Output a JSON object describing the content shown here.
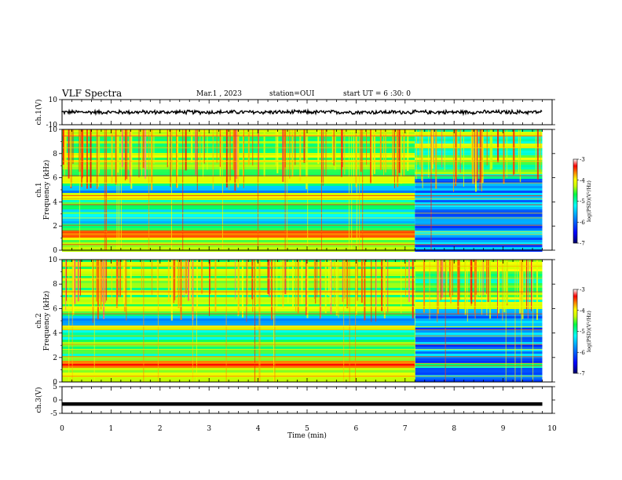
{
  "header": {
    "title": "VLF Spectra",
    "date": "Mar.1 , 2023",
    "station": "station=OUI",
    "start": "start UT = 6 :30: 0"
  },
  "colors": {
    "colormap": [
      "#000066",
      "#0000ff",
      "#0080ff",
      "#00ffff",
      "#00ff66",
      "#ccff00",
      "#ffff00",
      "#ff8800",
      "#ff0000",
      "#ffffff"
    ]
  },
  "chart_data": [
    {
      "type": "line",
      "panel": "ch1-waveform",
      "ylabel": "ch.1(V)",
      "ylim": [
        -10,
        10
      ],
      "yticks": [
        "10",
        "-10"
      ],
      "x": [
        0,
        1,
        2,
        3,
        4,
        5,
        6,
        7,
        8,
        9,
        9.8
      ],
      "y": [
        0,
        0,
        0,
        0,
        0,
        0,
        0,
        0,
        0,
        0,
        0
      ],
      "note_amplitude_v": 1.5
    },
    {
      "type": "heatmap",
      "panel": "ch1-spectrogram",
      "ylabel": "ch.1\nFrequency (kHz)",
      "ylim": [
        0,
        10
      ],
      "yticks": [
        "0",
        "2",
        "4",
        "6",
        "8",
        "10"
      ],
      "colorbar_label": "log(PSD)(V²/Hz)",
      "colorbar_range": [
        -7,
        -3
      ],
      "colorbar_ticks": [
        "-3",
        "-4",
        "-5",
        "-6",
        "-7"
      ],
      "strong_bands_khz": [
        1.5,
        4.5
      ],
      "change_time_min": 7.2
    },
    {
      "type": "heatmap",
      "panel": "ch2-spectrogram",
      "ylabel": "ch.2\nFrequency (kHz)",
      "ylim": [
        0,
        10
      ],
      "yticks": [
        "0",
        "2",
        "4",
        "6",
        "8",
        "10"
      ],
      "colorbar_label": "log(PSD)(V²/Hz)",
      "colorbar_range": [
        -7,
        -3
      ],
      "colorbar_ticks": [
        "-3",
        "-4",
        "-5",
        "-6",
        "-7"
      ],
      "strong_bands_khz": [
        1.5,
        4.5
      ],
      "change_time_min": 7.2
    },
    {
      "type": "line",
      "panel": "ch3-waveform",
      "ylabel": "ch.3(V)",
      "ylim": [
        -5,
        5
      ],
      "yticks": [
        "5",
        "0",
        "-5"
      ],
      "x": [
        0,
        9.8
      ],
      "y": [
        -1.5,
        -1.5
      ]
    }
  ],
  "xaxis": {
    "xlabel": "Time (min)",
    "xlim": [
      0,
      10
    ],
    "ticks": [
      "0",
      "1",
      "2",
      "3",
      "4",
      "5",
      "6",
      "7",
      "8",
      "9",
      "10"
    ]
  }
}
